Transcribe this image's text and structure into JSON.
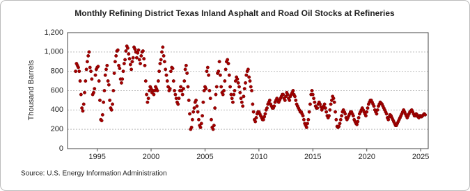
{
  "chart_data": {
    "type": "scatter",
    "title": "Monthly Refining District Texas Inland Asphalt and Road Oil Stocks at Refineries",
    "ylabel": "Thousand Barrels",
    "source": "Source: U.S. Energy Information Administration",
    "color": "#a50000",
    "grid": true,
    "xlim": [
      1992.25,
      2025.7
    ],
    "xticks": [
      1995,
      2000,
      2005,
      2010,
      2015,
      2020,
      2025
    ],
    "ylim": [
      0,
      1200
    ],
    "yticks": [
      0,
      200,
      400,
      600,
      800,
      {
        "value": 1000,
        "label": "1,000"
      },
      {
        "value": 1200,
        "label": "1,200"
      }
    ],
    "x": [
      1993,
      1993.083,
      1993.167,
      1993.25,
      1993.333,
      1993.417,
      1993.5,
      1993.583,
      1993.667,
      1993.75,
      1993.833,
      1993.917,
      1994,
      1994.083,
      1994.167,
      1994.25,
      1994.333,
      1994.417,
      1994.5,
      1994.583,
      1994.667,
      1994.75,
      1994.833,
      1994.917,
      1995,
      1995.083,
      1995.167,
      1995.25,
      1995.333,
      1995.417,
      1995.5,
      1995.583,
      1995.667,
      1995.75,
      1995.833,
      1995.917,
      1996,
      1996.083,
      1996.167,
      1996.25,
      1996.333,
      1996.417,
      1996.5,
      1996.583,
      1996.667,
      1996.75,
      1996.833,
      1996.917,
      1997,
      1997.083,
      1997.167,
      1997.25,
      1997.333,
      1997.417,
      1997.5,
      1997.583,
      1997.667,
      1997.75,
      1997.833,
      1997.917,
      1998,
      1998.083,
      1998.167,
      1998.25,
      1998.333,
      1998.417,
      1998.5,
      1998.583,
      1998.667,
      1998.75,
      1998.833,
      1998.917,
      1999,
      1999.083,
      1999.167,
      1999.25,
      1999.333,
      1999.417,
      1999.5,
      1999.583,
      1999.667,
      1999.75,
      1999.833,
      1999.917,
      2000,
      2000.083,
      2000.167,
      2000.25,
      2000.333,
      2000.417,
      2000.5,
      2000.583,
      2000.667,
      2000.75,
      2000.833,
      2000.917,
      2001,
      2001.083,
      2001.167,
      2001.25,
      2001.333,
      2001.417,
      2001.5,
      2001.583,
      2001.667,
      2001.75,
      2001.833,
      2001.917,
      2002,
      2002.083,
      2002.167,
      2002.25,
      2002.333,
      2002.417,
      2002.5,
      2002.583,
      2002.667,
      2002.75,
      2002.833,
      2002.917,
      2003,
      2003.083,
      2003.167,
      2003.25,
      2003.333,
      2003.417,
      2003.5,
      2003.583,
      2003.667,
      2003.75,
      2003.833,
      2003.917,
      2004,
      2004.083,
      2004.167,
      2004.25,
      2004.333,
      2004.417,
      2004.5,
      2004.583,
      2004.667,
      2004.75,
      2004.833,
      2004.917,
      2005,
      2005.083,
      2005.167,
      2005.25,
      2005.333,
      2005.417,
      2005.5,
      2005.583,
      2005.667,
      2005.75,
      2005.833,
      2005.917,
      2006,
      2006.083,
      2006.167,
      2006.25,
      2006.333,
      2006.417,
      2006.5,
      2006.583,
      2006.667,
      2006.75,
      2006.833,
      2006.917,
      2007,
      2007.083,
      2007.167,
      2007.25,
      2007.333,
      2007.417,
      2007.5,
      2007.583,
      2007.667,
      2007.75,
      2007.833,
      2007.917,
      2008,
      2008.083,
      2008.167,
      2008.25,
      2008.333,
      2008.417,
      2008.5,
      2008.583,
      2008.667,
      2008.75,
      2008.833,
      2008.917,
      2009,
      2009.083,
      2009.167,
      2009.25,
      2009.333,
      2009.417,
      2009.5,
      2009.583,
      2009.667,
      2009.75,
      2009.833,
      2009.917,
      2010,
      2010.083,
      2010.167,
      2010.25,
      2010.333,
      2010.417,
      2010.5,
      2010.583,
      2010.667,
      2010.75,
      2010.833,
      2010.917,
      2011,
      2011.083,
      2011.167,
      2011.25,
      2011.333,
      2011.417,
      2011.5,
      2011.583,
      2011.667,
      2011.75,
      2011.833,
      2011.917,
      2012,
      2012.083,
      2012.167,
      2012.25,
      2012.333,
      2012.417,
      2012.5,
      2012.583,
      2012.667,
      2012.75,
      2012.833,
      2012.917,
      2013,
      2013.083,
      2013.167,
      2013.25,
      2013.333,
      2013.417,
      2013.5,
      2013.583,
      2013.667,
      2013.75,
      2013.833,
      2013.917,
      2014,
      2014.083,
      2014.167,
      2014.25,
      2014.333,
      2014.417,
      2014.5,
      2014.583,
      2014.667,
      2014.75,
      2014.833,
      2014.917,
      2015,
      2015.083,
      2015.167,
      2015.25,
      2015.333,
      2015.417,
      2015.5,
      2015.583,
      2015.667,
      2015.75,
      2015.833,
      2015.917,
      2016,
      2016.083,
      2016.167,
      2016.25,
      2016.333,
      2016.417,
      2016.5,
      2016.583,
      2016.667,
      2016.75,
      2016.833,
      2016.917,
      2017,
      2017.083,
      2017.167,
      2017.25,
      2017.333,
      2017.417,
      2017.5,
      2017.583,
      2017.667,
      2017.75,
      2017.833,
      2017.917,
      2018,
      2018.083,
      2018.167,
      2018.25,
      2018.333,
      2018.417,
      2018.5,
      2018.583,
      2018.667,
      2018.75,
      2018.833,
      2018.917,
      2019,
      2019.083,
      2019.167,
      2019.25,
      2019.333,
      2019.417,
      2019.5,
      2019.583,
      2019.667,
      2019.75,
      2019.833,
      2019.917,
      2020,
      2020.083,
      2020.167,
      2020.25,
      2020.333,
      2020.417,
      2020.5,
      2020.583,
      2020.667,
      2020.75,
      2020.833,
      2020.917,
      2021,
      2021.083,
      2021.167,
      2021.25,
      2021.333,
      2021.417,
      2021.5,
      2021.583,
      2021.667,
      2021.75,
      2021.833,
      2021.917,
      2022,
      2022.083,
      2022.167,
      2022.25,
      2022.333,
      2022.417,
      2022.5,
      2022.583,
      2022.667,
      2022.75,
      2022.833,
      2022.917,
      2023,
      2023.083,
      2023.167,
      2023.25,
      2023.333,
      2023.417,
      2023.5,
      2023.583,
      2023.667,
      2023.75,
      2023.833,
      2023.917,
      2024,
      2024.083,
      2024.167,
      2024.25,
      2024.333,
      2024.417,
      2024.5,
      2024.583,
      2024.667,
      2024.75,
      2024.833,
      2024.917,
      2025,
      2025.083,
      2025.167,
      2025.25,
      2025.333,
      2025.417
    ],
    "values": [
      800,
      880,
      860,
      840,
      800,
      700,
      560,
      420,
      390,
      460,
      580,
      700,
      820,
      900,
      960,
      1000,
      840,
      800,
      720,
      560,
      580,
      620,
      760,
      820,
      840,
      850,
      700,
      500,
      300,
      290,
      350,
      480,
      600,
      760,
      820,
      860,
      700,
      660,
      500,
      420,
      400,
      460,
      600,
      780,
      900,
      960,
      1010,
      1020,
      860,
      830,
      720,
      680,
      720,
      800,
      880,
      920,
      1010,
      1060,
      1040,
      980,
      930,
      870,
      820,
      900,
      940,
      1050,
      1030,
      1000,
      940,
      990,
      1020,
      920,
      880,
      960,
      1000,
      1010,
      930,
      860,
      700,
      560,
      480,
      520,
      600,
      640,
      620,
      580,
      600,
      560,
      600,
      640,
      620,
      600,
      700,
      800,
      880,
      920,
      1000,
      1050,
      960,
      900,
      820,
      760,
      700,
      640,
      600,
      620,
      800,
      840,
      830,
      700,
      600,
      560,
      520,
      480,
      460,
      520,
      600,
      640,
      600,
      560,
      620,
      700,
      820,
      860,
      780,
      640,
      500,
      360,
      200,
      220,
      300,
      380,
      420,
      480,
      500,
      440,
      380,
      300,
      240,
      220,
      260,
      340,
      480,
      600,
      640,
      620,
      800,
      840,
      760,
      600,
      520,
      300,
      220,
      200,
      240,
      420,
      560,
      640,
      780,
      800,
      900,
      760,
      640,
      580,
      560,
      600,
      700,
      820,
      900,
      920,
      880,
      760,
      640,
      560,
      520,
      480,
      560,
      600,
      700,
      740,
      720,
      680,
      640,
      580,
      520,
      480,
      440,
      540,
      620,
      680,
      760,
      800,
      820,
      740,
      700,
      640,
      600,
      460,
      380,
      300,
      280,
      320,
      360,
      380,
      380,
      360,
      340,
      320,
      300,
      300,
      330,
      360,
      400,
      420,
      460,
      480,
      500,
      460,
      440,
      420,
      420,
      440,
      480,
      500,
      520,
      500,
      480,
      500,
      520,
      540,
      560,
      560,
      520,
      500,
      540,
      580,
      560,
      520,
      500,
      540,
      560,
      580,
      600,
      560,
      540,
      500,
      460,
      440,
      420,
      400,
      380,
      380,
      360,
      340,
      300,
      260,
      240,
      220,
      260,
      300,
      380,
      460,
      560,
      600,
      560,
      520,
      480,
      440,
      420,
      420,
      460,
      480,
      460,
      430,
      400,
      420,
      440,
      460,
      420,
      380,
      340,
      320,
      340,
      400,
      460,
      500,
      540,
      520,
      480,
      380,
      300,
      230,
      220,
      230,
      260,
      300,
      340,
      380,
      400,
      380,
      360,
      320,
      300,
      320,
      340,
      360,
      380,
      380,
      360,
      340,
      300,
      280,
      260,
      250,
      280,
      320,
      360,
      380,
      400,
      420,
      400,
      380,
      360,
      340,
      380,
      420,
      460,
      480,
      500,
      500,
      480,
      460,
      440,
      400,
      380,
      360,
      400,
      440,
      460,
      480,
      470,
      460,
      440,
      420,
      400,
      380,
      360,
      320,
      300,
      330,
      350,
      340,
      320,
      300,
      280,
      260,
      240,
      240,
      260,
      280,
      300,
      320,
      340,
      360,
      380,
      400,
      380,
      360,
      340,
      320,
      340,
      360,
      380,
      390,
      400,
      380,
      360,
      340,
      340,
      360,
      350,
      330,
      320,
      340,
      340,
      330,
      340,
      350,
      360,
      350
    ]
  }
}
